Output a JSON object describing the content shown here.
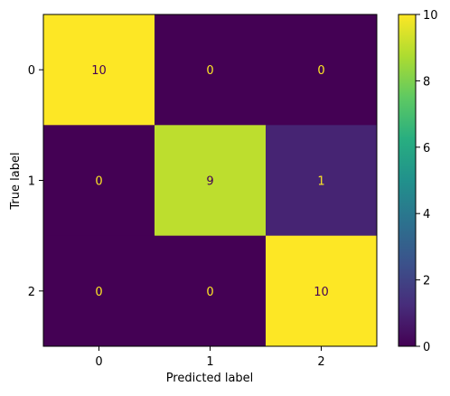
{
  "chart_data": {
    "type": "heatmap",
    "title": "",
    "xlabel": "Predicted label",
    "ylabel": "True label",
    "x_categories": [
      "0",
      "1",
      "2"
    ],
    "y_categories": [
      "0",
      "1",
      "2"
    ],
    "values": [
      [
        10,
        0,
        0
      ],
      [
        0,
        9,
        1
      ],
      [
        0,
        0,
        10
      ]
    ],
    "colormap": "viridis",
    "vmin": 0,
    "vmax": 10,
    "colorbar_ticks": [
      "0",
      "2",
      "4",
      "6",
      "8",
      "10"
    ],
    "grid": false,
    "colors": {
      "text_on_dark": "#fde725",
      "text_on_light": "#440154"
    }
  }
}
